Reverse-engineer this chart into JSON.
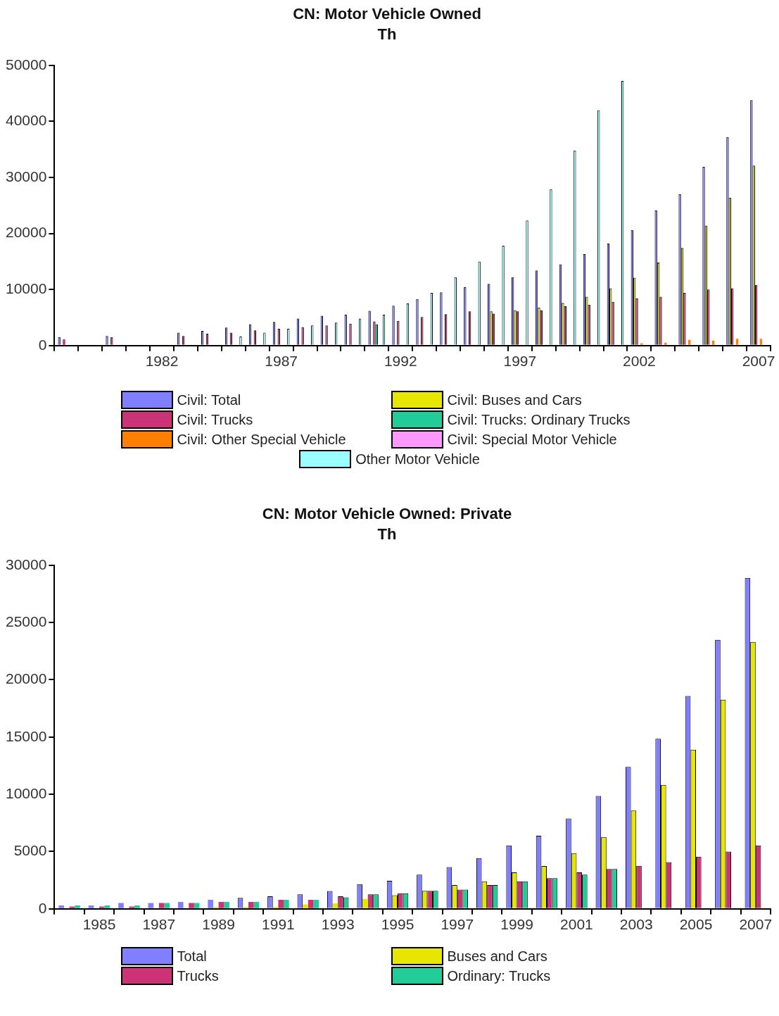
{
  "chart_data": [
    {
      "type": "bar",
      "title": "CN: Motor Vehicle Owned",
      "subtitle": "Th",
      "categories": [
        null,
        null,
        null,
        null,
        "1982",
        null,
        null,
        null,
        null,
        "1987",
        null,
        null,
        null,
        null,
        "1992",
        null,
        null,
        null,
        null,
        "1997",
        null,
        null,
        null,
        null,
        "2002",
        null,
        null,
        null,
        null,
        "2007"
      ],
      "series": [
        {
          "name": "Civil: Total",
          "color": "#7f7fff",
          "values": [
            1500,
            null,
            1700,
            null,
            null,
            2300,
            2600,
            3200,
            3800,
            4200,
            4800,
            5300,
            5500,
            6200,
            7100,
            8300,
            9500,
            10400,
            11000,
            12200,
            13400,
            14500,
            16300,
            18200,
            20600,
            24100,
            27000,
            31900,
            37200,
            43800
          ]
        },
        {
          "name": "Civil: Buses and Cars",
          "color": "#e6e600",
          "values": [
            null,
            null,
            null,
            null,
            null,
            null,
            null,
            null,
            null,
            null,
            null,
            null,
            null,
            null,
            null,
            null,
            null,
            null,
            6100,
            6300,
            6800,
            7600,
            8700,
            10200,
            12100,
            14800,
            17400,
            21400,
            26400,
            32100
          ]
        },
        {
          "name": "Civil: Trucks",
          "color": "#cc3377",
          "values": [
            1100,
            null,
            1500,
            null,
            null,
            1700,
            2100,
            2300,
            2700,
            3000,
            3300,
            3600,
            3900,
            4300,
            4400,
            5100,
            5600,
            6100,
            5700,
            6100,
            6300,
            7000,
            7300,
            7800,
            8400,
            8700,
            9400,
            10000,
            10200,
            10800
          ]
        },
        {
          "name": "Civil: Trucks: Ordinary Trucks",
          "color": "#22cc99",
          "values": [
            null,
            null,
            null,
            null,
            null,
            null,
            null,
            null,
            null,
            null,
            null,
            null,
            null,
            3800,
            null,
            null,
            null,
            null,
            null,
            null,
            null,
            null,
            null,
            null,
            null,
            null,
            null,
            null,
            null,
            null
          ]
        },
        {
          "name": "Civil: Other Special Vehicle",
          "color": "#ff7f00",
          "values": [
            null,
            null,
            null,
            null,
            null,
            null,
            null,
            null,
            null,
            null,
            null,
            null,
            null,
            null,
            null,
            null,
            null,
            null,
            null,
            null,
            null,
            null,
            null,
            null,
            400,
            500,
            1000,
            900,
            1200,
            1200
          ]
        },
        {
          "name": "Civil: Special Motor Vehicle",
          "color": "#ff99ff",
          "values": [
            null,
            null,
            null,
            null,
            null,
            null,
            null,
            null,
            null,
            null,
            null,
            null,
            null,
            null,
            null,
            null,
            null,
            null,
            null,
            null,
            null,
            null,
            null,
            null,
            null,
            null,
            null,
            null,
            null,
            null
          ]
        },
        {
          "name": "Other Motor Vehicle",
          "color": "#99ffff",
          "values": [
            null,
            null,
            null,
            null,
            null,
            null,
            null,
            1600,
            2300,
            3000,
            3600,
            4100,
            4800,
            5500,
            7500,
            9400,
            12200,
            15000,
            17800,
            22300,
            27900,
            34800,
            42000,
            47200,
            null,
            null,
            null,
            null,
            null,
            null
          ]
        }
      ],
      "ylim": [
        0,
        50000
      ],
      "yticks": [
        0,
        10000,
        20000,
        30000,
        40000,
        50000
      ],
      "legend": "bottom"
    },
    {
      "type": "bar",
      "title": "CN: Motor Vehicle Owned: Private",
      "subtitle": "Th",
      "categories": [
        null,
        "1985",
        null,
        "1987",
        null,
        "1989",
        null,
        "1991",
        null,
        "1993",
        null,
        "1995",
        null,
        "1997",
        null,
        "1999",
        null,
        "2001",
        null,
        "2003",
        null,
        "2005",
        null,
        "2007"
      ],
      "series": [
        {
          "name": "Total",
          "color": "#7f7fff",
          "values": [
            290,
            290,
            510,
            510,
            600,
            780,
            960,
            1090,
            1270,
            1550,
            2150,
            2440,
            2980,
            3650,
            4430,
            5530,
            6380,
            7880,
            9860,
            12390,
            14850,
            18590,
            23480,
            28900
          ]
        },
        {
          "name": "Buses and Cars",
          "color": "#e6e600",
          "values": [
            null,
            null,
            null,
            null,
            null,
            150,
            150,
            150,
            380,
            470,
            870,
            1180,
            1570,
            2080,
            2400,
            3180,
            3740,
            4860,
            6270,
            8580,
            10820,
            13890,
            18260,
            23300
          ]
        },
        {
          "name": "Trucks",
          "color": "#cc3377",
          "values": [
            200,
            200,
            200,
            510,
            510,
            600,
            600,
            780,
            780,
            1090,
            1270,
            1350,
            1570,
            1680,
            2080,
            2400,
            2670,
            3180,
            3470,
            3760,
            4080,
            4550,
            5000,
            5530
          ]
        },
        {
          "name": "Ordinary: Trucks",
          "color": "#22cc99",
          "values": [
            290,
            290,
            290,
            510,
            510,
            600,
            600,
            780,
            780,
            1000,
            1270,
            1350,
            1570,
            1680,
            2080,
            2400,
            2670,
            2980,
            3470,
            null,
            null,
            null,
            null,
            null
          ]
        }
      ],
      "ylim": [
        0,
        30000
      ],
      "yticks": [
        0,
        5000,
        10000,
        15000,
        20000,
        25000,
        30000
      ],
      "legend": "bottom"
    }
  ]
}
